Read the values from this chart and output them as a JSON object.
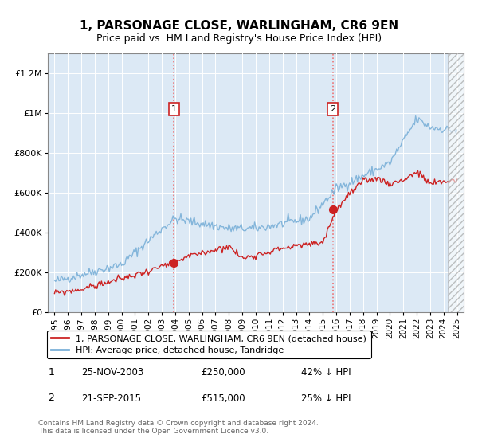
{
  "title": "1, PARSONAGE CLOSE, WARLINGHAM, CR6 9EN",
  "subtitle": "Price paid vs. HM Land Registry's House Price Index (HPI)",
  "background_color": "#dce9f5",
  "white_bg": "#ffffff",
  "red_color": "#cc2222",
  "blue_color": "#7ab0d8",
  "sale1_x": 2003.9,
  "sale1_y": 250000,
  "sale2_x": 2015.75,
  "sale2_y": 515000,
  "ylabel_ticks": [
    "£0",
    "£200K",
    "£400K",
    "£600K",
    "£800K",
    "£1M",
    "£1.2M"
  ],
  "ylabel_values": [
    0,
    200000,
    400000,
    600000,
    800000,
    1000000,
    1200000
  ],
  "ylim": [
    0,
    1300000
  ],
  "xlim_start": 1994.5,
  "xlim_end": 2025.5,
  "legend_label_red": "1, PARSONAGE CLOSE, WARLINGHAM, CR6 9EN (detached house)",
  "legend_label_blue": "HPI: Average price, detached house, Tandridge",
  "footer": "Contains HM Land Registry data © Crown copyright and database right 2024.\nThis data is licensed under the Open Government Licence v3.0.",
  "xticks": [
    1995,
    1996,
    1997,
    1998,
    1999,
    2000,
    2001,
    2002,
    2003,
    2004,
    2005,
    2006,
    2007,
    2008,
    2009,
    2010,
    2011,
    2012,
    2013,
    2014,
    2015,
    2016,
    2017,
    2018,
    2019,
    2020,
    2021,
    2022,
    2023,
    2024,
    2025
  ],
  "hpi_seed": 42,
  "red_seed": 99
}
